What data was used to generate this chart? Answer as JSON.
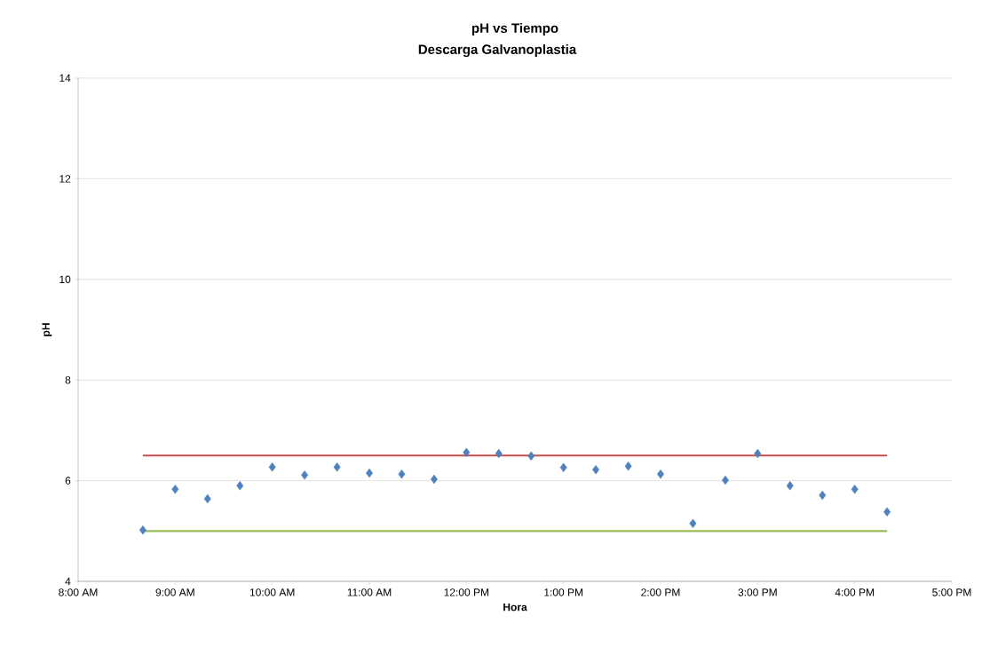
{
  "chart_data": {
    "type": "scatter",
    "title": "pH vs Tiempo",
    "subtitle": "Descarga Galvanoplastia",
    "xlabel": "Hora",
    "ylabel": "pH",
    "xlim": [
      8,
      17
    ],
    "ylim": [
      4,
      14
    ],
    "xticks": [
      {
        "value": 8,
        "label": "8:00 AM"
      },
      {
        "value": 9,
        "label": "9:00 AM"
      },
      {
        "value": 10,
        "label": "10:00 AM"
      },
      {
        "value": 11,
        "label": "11:00 AM"
      },
      {
        "value": 12,
        "label": "12:00 PM"
      },
      {
        "value": 13,
        "label": "1:00 PM"
      },
      {
        "value": 14,
        "label": "2:00 PM"
      },
      {
        "value": 15,
        "label": "3:00 PM"
      },
      {
        "value": 16,
        "label": "4:00 PM"
      },
      {
        "value": 17,
        "label": "5:00 PM"
      }
    ],
    "yticks": [
      4,
      6,
      8,
      10,
      12,
      14
    ],
    "grid": "y",
    "marker": "diamond",
    "series": [
      {
        "color": "#4f81bd",
        "x": [
          8.667,
          9,
          9.333,
          9.667,
          10,
          10.333,
          10.667,
          11,
          11.333,
          11.667,
          12,
          12.333,
          12.667,
          13,
          13.333,
          13.667,
          14,
          14.333,
          14.667,
          15,
          15.333,
          15.667,
          16,
          16.333
        ],
        "values": [
          5.02,
          5.83,
          5.64,
          5.9,
          6.27,
          6.11,
          6.27,
          6.15,
          6.13,
          6.03,
          6.56,
          6.54,
          6.49,
          6.26,
          6.22,
          6.29,
          6.13,
          5.15,
          6.01,
          6.54,
          5.9,
          5.71,
          5.83,
          5.38
        ]
      },
      {
        "type": "line",
        "color": "#c0504d",
        "marker": "none",
        "line_style": "solid",
        "x": [
          8.667,
          16.333
        ],
        "values": [
          6.5,
          6.5
        ]
      },
      {
        "type": "line",
        "color": "#9bbb59",
        "marker": "none",
        "line_style": "solid",
        "x": [
          8.667,
          16.333
        ],
        "values": [
          5,
          5
        ]
      }
    ]
  }
}
